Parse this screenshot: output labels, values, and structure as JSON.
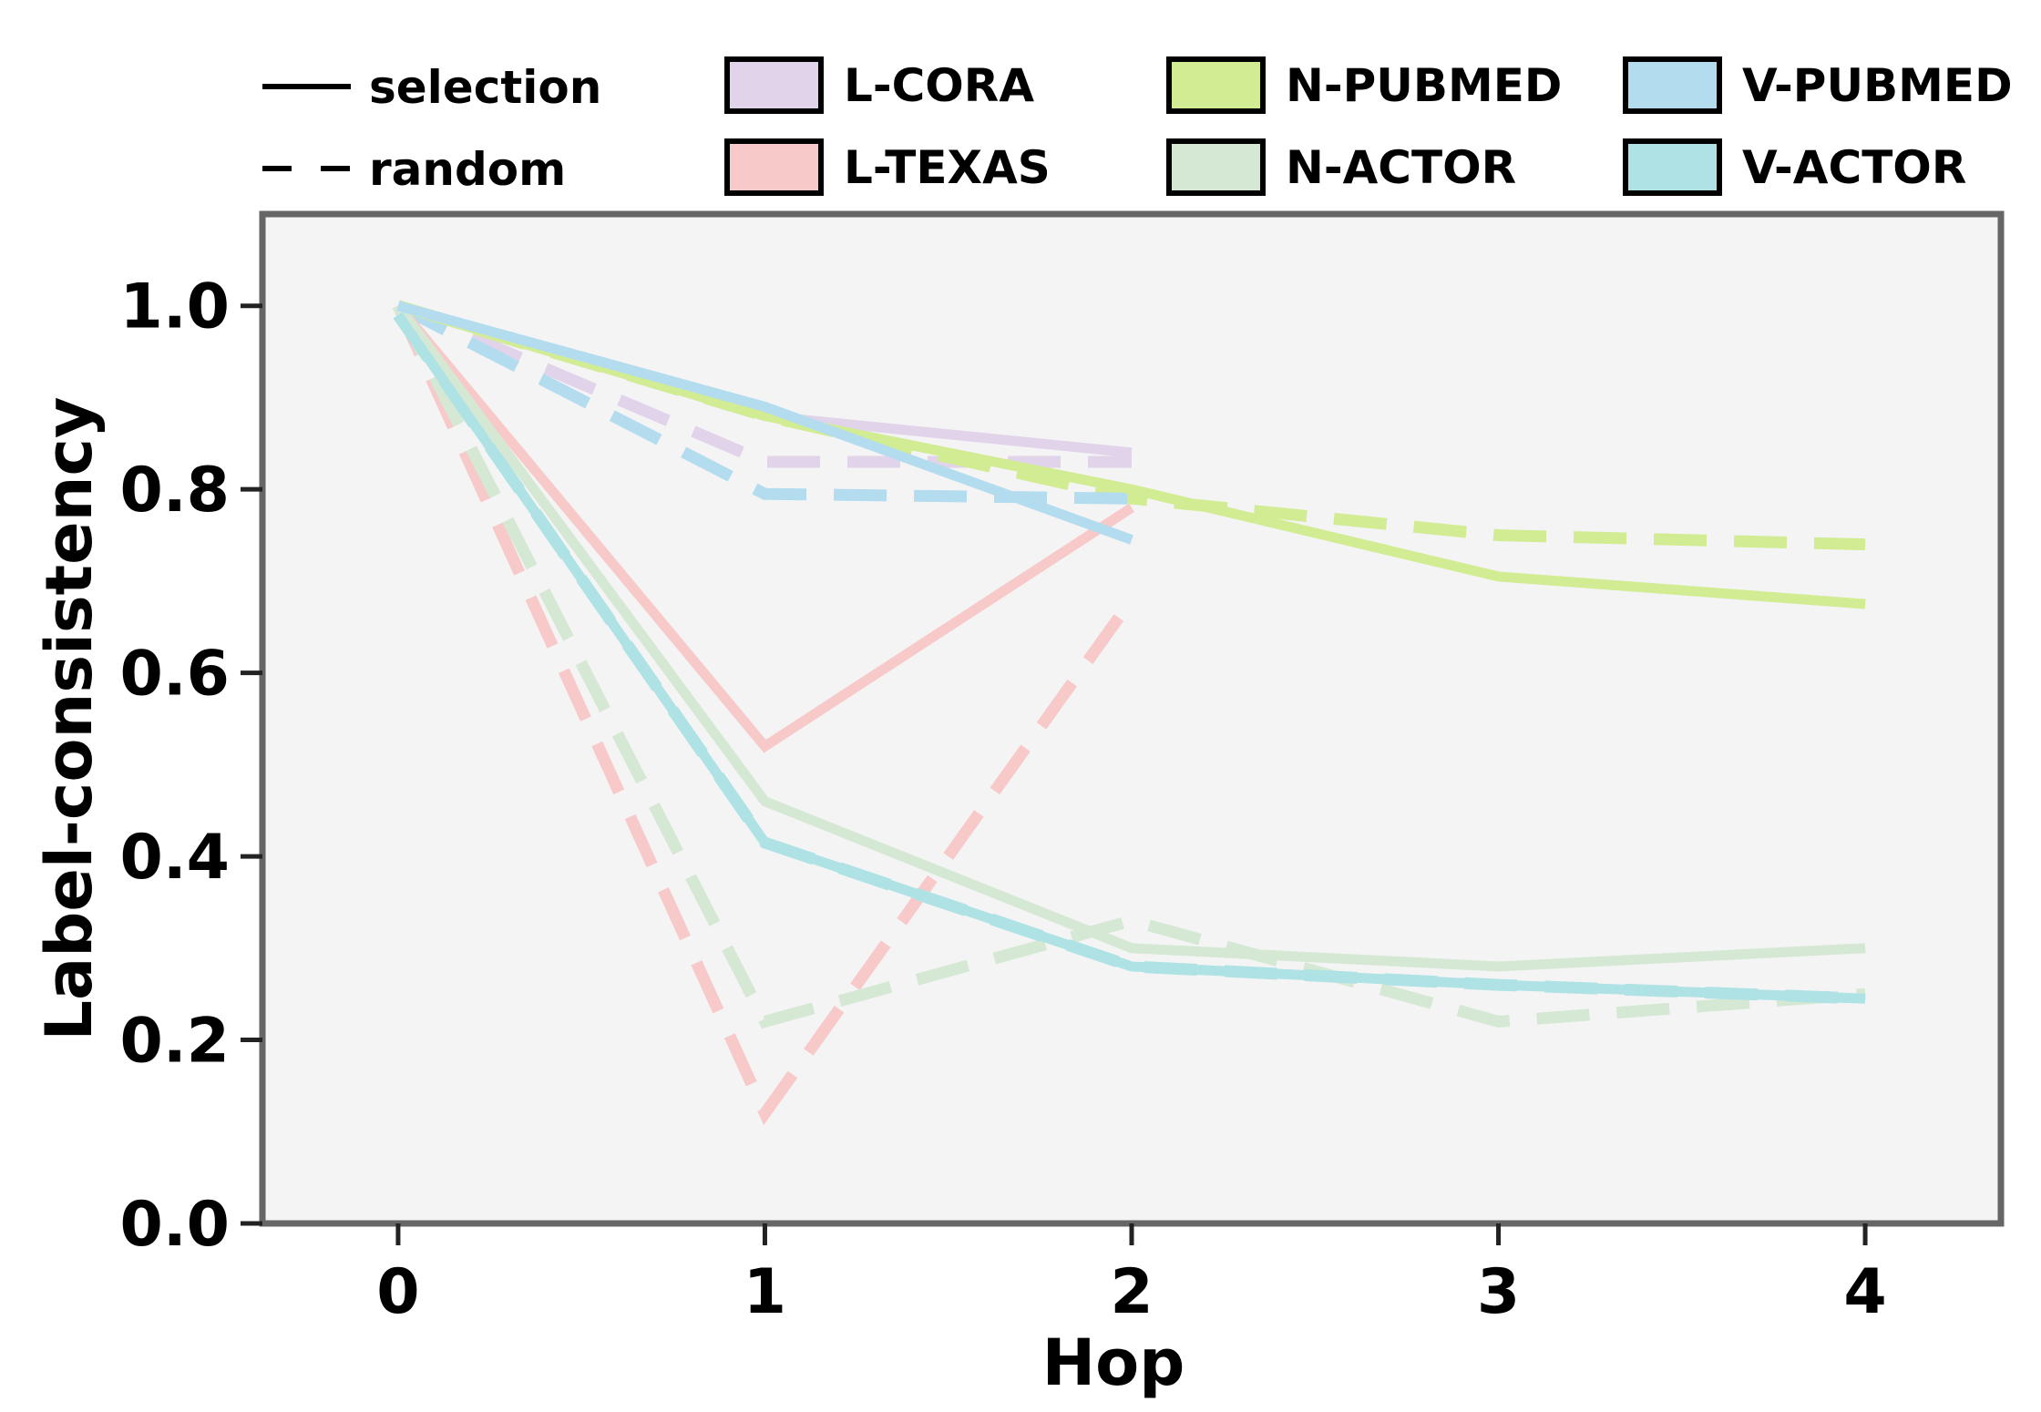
{
  "chart_data": {
    "type": "line",
    "title": "",
    "xlabel": "Hop",
    "ylabel": "Label-consistency",
    "xlim": [
      -0.37,
      4.37
    ],
    "ylim": [
      0.0,
      1.1
    ],
    "x_ticks": [
      "0",
      "1",
      "2",
      "3",
      "4"
    ],
    "y_ticks": [
      "0.0",
      "0.2",
      "0.4",
      "0.6",
      "0.8",
      "1.0"
    ],
    "grid": false,
    "legend_position": "top",
    "style_legend": [
      {
        "label": "selection",
        "dash": "solid"
      },
      {
        "label": "random",
        "dash": "dashed"
      }
    ],
    "series": [
      {
        "name": "L-CORA",
        "color": "#e1d3ea",
        "selection": {
          "x": [
            0,
            1,
            2
          ],
          "values": [
            1.0,
            0.88,
            0.84
          ]
        },
        "random": {
          "x": [
            0,
            1,
            2
          ],
          "values": [
            1.0,
            0.83,
            0.83
          ]
        }
      },
      {
        "name": "L-TEXAS",
        "color": "#f7cac9",
        "selection": {
          "x": [
            0,
            1,
            2
          ],
          "values": [
            1.0,
            0.52,
            0.78
          ]
        },
        "random": {
          "x": [
            0,
            1,
            2
          ],
          "values": [
            1.0,
            0.12,
            0.68
          ]
        }
      },
      {
        "name": "N-PUBMED",
        "color": "#d1ec92",
        "selection": {
          "x": [
            0,
            1,
            2,
            3,
            4
          ],
          "values": [
            1.0,
            0.88,
            0.8,
            0.705,
            0.675
          ]
        },
        "random": {
          "x": [
            0,
            1,
            2,
            3,
            4
          ],
          "values": [
            1.0,
            0.88,
            0.79,
            0.75,
            0.74
          ]
        }
      },
      {
        "name": "N-ACTOR",
        "color": "#d4e8d4",
        "selection": {
          "x": [
            0,
            1,
            2,
            3,
            4
          ],
          "values": [
            1.0,
            0.46,
            0.3,
            0.28,
            0.3
          ]
        },
        "random": {
          "x": [
            0,
            1,
            2,
            3,
            4
          ],
          "values": [
            1.0,
            0.22,
            0.33,
            0.22,
            0.25
          ]
        }
      },
      {
        "name": "V-PUBMED",
        "color": "#b3dcef",
        "selection": {
          "x": [
            0,
            1,
            2
          ],
          "values": [
            1.0,
            0.89,
            0.745
          ]
        },
        "random": {
          "x": [
            0,
            1,
            2
          ],
          "values": [
            1.0,
            0.795,
            0.79
          ]
        }
      },
      {
        "name": "V-ACTOR",
        "color": "#aee2e5",
        "selection": {
          "x": [
            0,
            1,
            2,
            3,
            4
          ],
          "values": [
            0.99,
            0.415,
            0.28,
            0.26,
            0.245
          ]
        },
        "random": {
          "x": [
            0,
            1,
            2,
            3,
            4
          ],
          "values": [
            0.99,
            0.415,
            0.28,
            0.26,
            0.245
          ]
        }
      }
    ]
  }
}
